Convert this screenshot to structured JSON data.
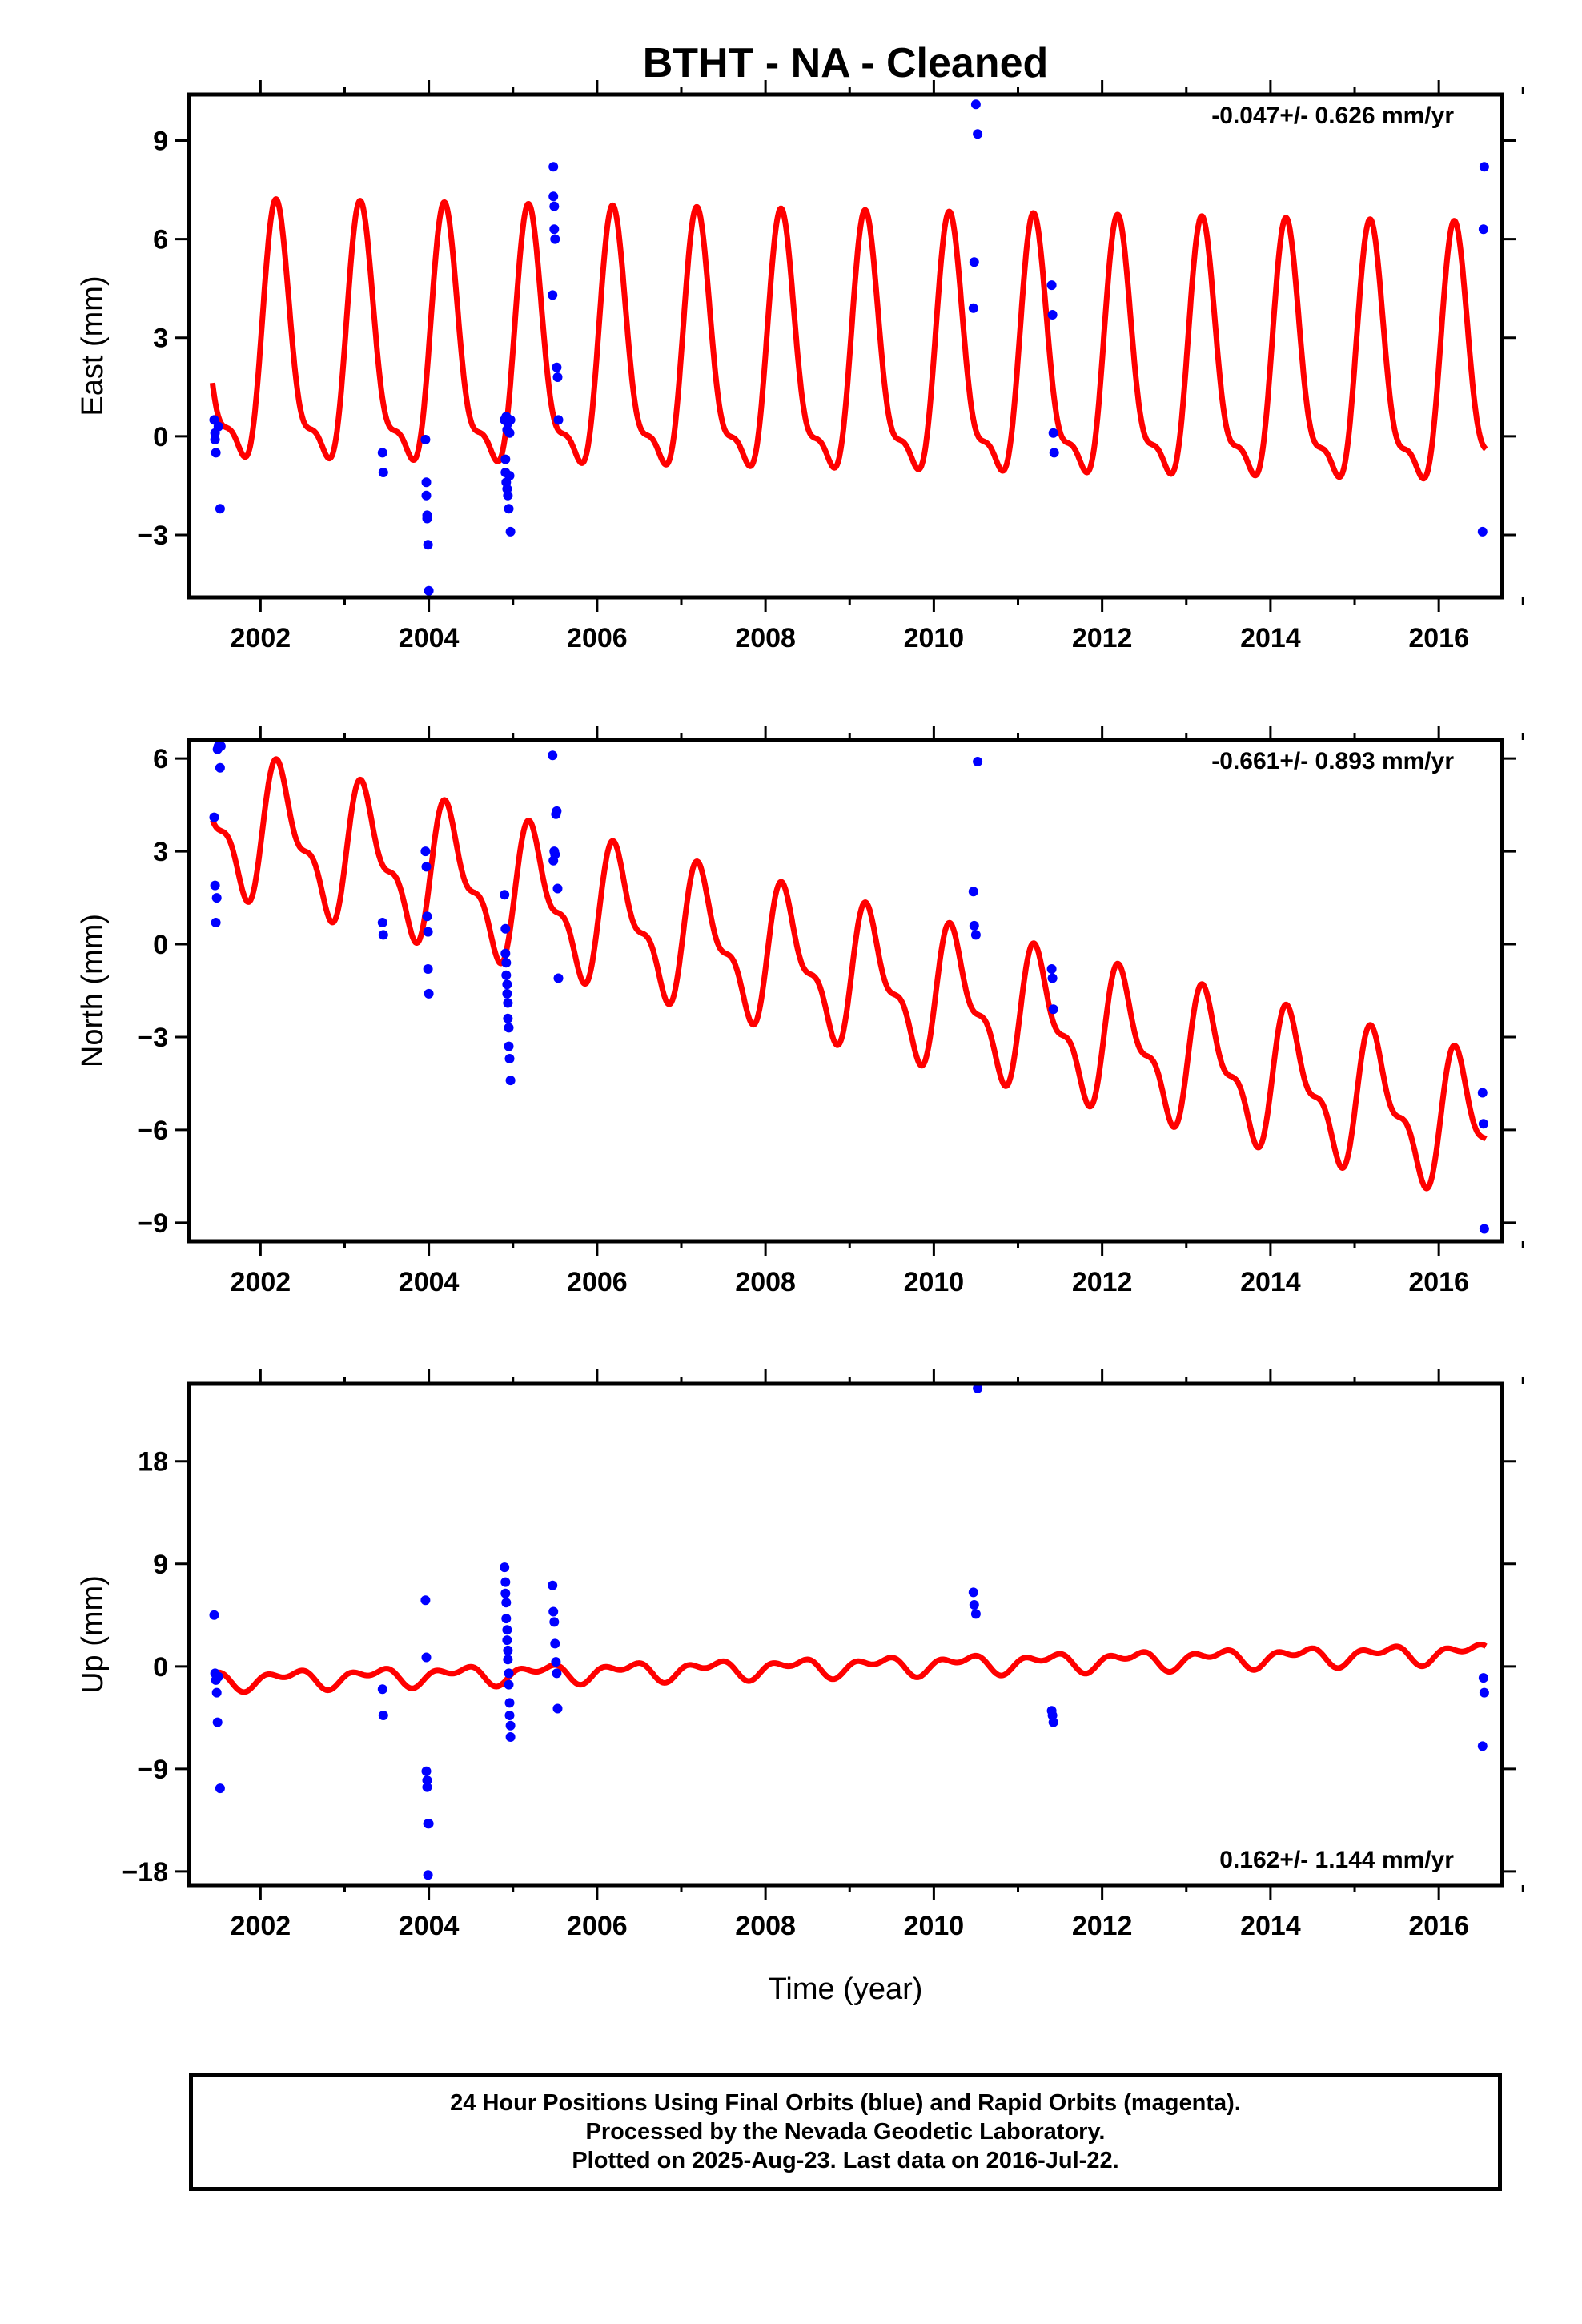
{
  "figure": {
    "title": "BTHT  - NA - Cleaned",
    "xlabel": "Time (year)",
    "footer": [
      "24 Hour Positions Using Final Orbits (blue) and Rapid Orbits (magenta).",
      "Processed by the Nevada Geodetic Laboratory.",
      "Plotted on 2025-Aug-23. Last data on 2016-Jul-22."
    ]
  },
  "colors": {
    "model": "#ff0000",
    "final_orbits": "#0000ff",
    "frame": "#000000"
  },
  "chart_data": [
    {
      "type": "scatter",
      "panel": "east",
      "ylabel": "East (mm)",
      "rate_text": "-0.047+/- 0.626 mm/yr",
      "rate_position": "top-right",
      "xlim": [
        2001.15,
        2016.75
      ],
      "ylim": [
        -4.9,
        10.4
      ],
      "xticks": [
        2002,
        2004,
        2006,
        2008,
        2010,
        2012,
        2014,
        2016
      ],
      "yticks": [
        -3,
        0,
        3,
        6,
        9
      ],
      "grid": false,
      "series": [
        {
          "kind": "points",
          "color": "#0000ff",
          "x": [
            2001.45,
            2001.46,
            2001.46,
            2001.47,
            2001.5,
            2001.52,
            2003.45,
            2003.46,
            2003.96,
            2003.97,
            2003.97,
            2003.98,
            2003.98,
            2003.99,
            2004.0,
            2004.9,
            2004.91,
            2004.91,
            2004.92,
            2004.92,
            2004.93,
            2004.93,
            2004.94,
            2004.94,
            2004.95,
            2004.96,
            2004.96,
            2004.97,
            2004.97,
            2005.47,
            2005.48,
            2005.48,
            2005.49,
            2005.49,
            2005.5,
            2005.52,
            2005.53,
            2005.54,
            2010.47,
            2010.48,
            2010.5,
            2010.52,
            2011.4,
            2011.41,
            2011.42,
            2011.43,
            2016.52,
            2016.53,
            2016.54
          ],
          "y": [
            0.5,
            0.1,
            -0.1,
            -0.5,
            0.3,
            -2.2,
            -0.5,
            -1.1,
            -0.1,
            -1.4,
            -1.8,
            -2.4,
            -2.5,
            -3.3,
            -4.7,
            0.5,
            -0.7,
            -1.1,
            0.6,
            -1.4,
            0.2,
            -1.6,
            0.4,
            -1.8,
            -2.2,
            0.1,
            -1.2,
            -2.9,
            0.5,
            4.3,
            8.2,
            7.3,
            7.0,
            6.3,
            6.0,
            2.1,
            1.8,
            0.5,
            3.9,
            5.3,
            10.1,
            9.2,
            4.6,
            3.7,
            0.1,
            -0.5,
            -2.9,
            6.3,
            8.2
          ]
        },
        {
          "kind": "model",
          "color": "#ff0000",
          "offset": 2.05,
          "rate": -0.047,
          "t0": 2009.0,
          "annual": [
            1.1,
            3.45
          ],
          "semiannual": [
            -0.7,
            1.05
          ]
        }
      ]
    },
    {
      "type": "scatter",
      "panel": "north",
      "ylabel": "North (mm)",
      "rate_text": "-0.661+/- 0.893 mm/yr",
      "rate_position": "top-right",
      "xlim": [
        2001.15,
        2016.75
      ],
      "ylim": [
        -9.6,
        6.6
      ],
      "xticks": [
        2002,
        2004,
        2006,
        2008,
        2010,
        2012,
        2014,
        2016
      ],
      "yticks": [
        -9,
        -6,
        -3,
        0,
        3,
        6
      ],
      "grid": false,
      "series": [
        {
          "kind": "points",
          "color": "#0000ff",
          "x": [
            2001.45,
            2001.46,
            2001.47,
            2001.48,
            2001.49,
            2001.5,
            2001.52,
            2001.53,
            2003.45,
            2003.46,
            2003.96,
            2003.97,
            2003.98,
            2003.99,
            2003.99,
            2004.0,
            2004.9,
            2004.91,
            2004.91,
            2004.92,
            2004.92,
            2004.93,
            2004.93,
            2004.94,
            2004.94,
            2004.95,
            2004.95,
            2004.96,
            2004.97,
            2005.47,
            2005.48,
            2005.49,
            2005.5,
            2005.51,
            2005.52,
            2005.53,
            2005.54,
            2010.47,
            2010.48,
            2010.5,
            2010.52,
            2011.4,
            2011.41,
            2011.42,
            2016.52,
            2016.53,
            2016.54
          ],
          "y": [
            4.1,
            1.9,
            0.7,
            1.5,
            6.3,
            6.4,
            5.7,
            6.4,
            0.7,
            0.3,
            3.0,
            2.5,
            0.9,
            0.4,
            -0.8,
            -1.6,
            1.6,
            0.5,
            -0.3,
            -0.6,
            -1.0,
            -1.3,
            -1.6,
            -1.9,
            -2.4,
            -2.7,
            -3.3,
            -3.7,
            -4.4,
            6.1,
            2.7,
            3.0,
            2.9,
            4.2,
            4.3,
            1.8,
            -1.1,
            1.7,
            0.6,
            0.3,
            5.9,
            -0.8,
            -1.1,
            -2.1,
            -4.8,
            -5.8,
            -9.2
          ]
        },
        {
          "kind": "model",
          "color": "#ff0000",
          "offset": -1.05,
          "rate": -0.661,
          "t0": 2009.0,
          "annual": [
            -0.1,
            1.9
          ],
          "semiannual": [
            -0.3,
            0.85
          ]
        }
      ]
    },
    {
      "type": "scatter",
      "panel": "up",
      "ylabel": "Up (mm)",
      "rate_text": "0.162+/- 1.144 mm/yr",
      "rate_position": "bottom-right",
      "xlim": [
        2001.15,
        2016.75
      ],
      "ylim": [
        -19.2,
        24.8
      ],
      "xticks": [
        2002,
        2004,
        2006,
        2008,
        2010,
        2012,
        2014,
        2016
      ],
      "yticks": [
        -18,
        -9,
        0,
        9,
        18
      ],
      "grid": false,
      "series": [
        {
          "kind": "points",
          "color": "#0000ff",
          "x": [
            2001.45,
            2001.46,
            2001.47,
            2001.48,
            2001.49,
            2001.5,
            2001.52,
            2003.45,
            2003.46,
            2003.96,
            2003.97,
            2003.97,
            2003.98,
            2003.98,
            2003.99,
            2003.99,
            2004.0,
            2004.9,
            2004.91,
            2004.91,
            2004.92,
            2004.92,
            2004.93,
            2004.93,
            2004.94,
            2004.94,
            2004.95,
            2004.95,
            2004.96,
            2004.96,
            2004.97,
            2004.97,
            2005.47,
            2005.48,
            2005.49,
            2005.5,
            2005.51,
            2005.52,
            2005.53,
            2010.47,
            2010.48,
            2010.5,
            2010.52,
            2011.4,
            2011.41,
            2011.42,
            2016.52,
            2016.53,
            2016.54
          ],
          "y": [
            4.5,
            -0.6,
            -1.2,
            -2.3,
            -4.9,
            -0.9,
            -10.7,
            -2.0,
            -4.3,
            5.8,
            0.8,
            -9.2,
            -10.0,
            -10.6,
            -13.8,
            -18.3,
            -13.8,
            8.7,
            7.4,
            6.4,
            5.6,
            4.2,
            3.2,
            2.3,
            1.4,
            0.6,
            -0.6,
            -1.6,
            -3.2,
            -4.3,
            -5.2,
            -6.2,
            7.1,
            4.8,
            3.9,
            2.0,
            0.4,
            -0.6,
            -3.7,
            6.5,
            5.4,
            4.6,
            24.4,
            -3.9,
            -4.3,
            -4.9,
            -7.0,
            -1.0,
            -2.3
          ]
        },
        {
          "kind": "model",
          "color": "#ff0000",
          "offset": 0.0,
          "rate": 0.162,
          "t0": 2009.0,
          "annual": [
            -0.3,
            0.55
          ],
          "semiannual": [
            0.4,
            0.25
          ]
        }
      ]
    }
  ]
}
